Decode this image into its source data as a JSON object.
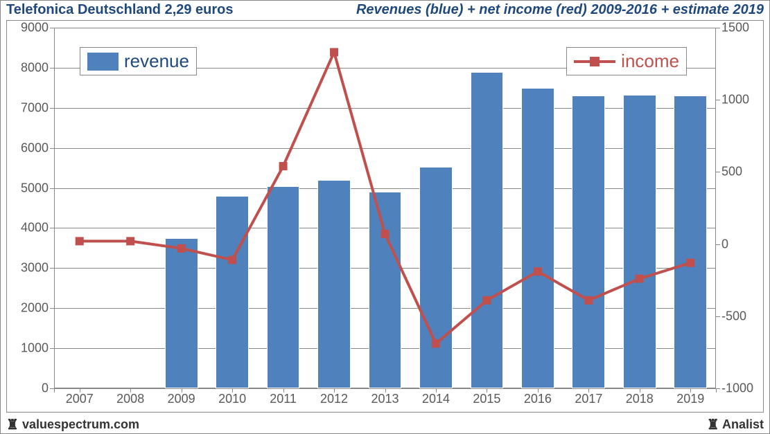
{
  "header": {
    "left": "Telefonica Deutschland 2,29 euros",
    "right": "Revenues (blue) + net income (red) 2009-2016 + estimate 2019"
  },
  "footer": {
    "left": "valuespectrum.com",
    "right": "Analist"
  },
  "legend": {
    "revenue": "revenue",
    "income": "income"
  },
  "chart": {
    "type": "bar+line",
    "categories": [
      "2007",
      "2008",
      "2009",
      "2010",
      "2011",
      "2012",
      "2013",
      "2014",
      "2015",
      "2016",
      "2017",
      "2018",
      "2019"
    ],
    "bars": {
      "values": [
        0,
        0,
        3750,
        4800,
        5050,
        5200,
        4900,
        5520,
        7890,
        7500,
        7300,
        7320,
        7300
      ],
      "color": "#4f81bd",
      "border_color": "#ffffff",
      "bar_width_frac": 0.65
    },
    "line": {
      "values": [
        20,
        20,
        -30,
        -110,
        540,
        1330,
        70,
        -690,
        -390,
        -190,
        -390,
        -240,
        -130
      ],
      "color": "#c0504d",
      "line_width": 4,
      "marker": "square",
      "marker_size": 12
    },
    "y_left": {
      "min": 0,
      "max": 9000,
      "step": 1000
    },
    "y_right": {
      "min": -1000,
      "max": 1500,
      "step": 500
    },
    "grid_color": "#888888",
    "background_color": "#ffffff",
    "label_fontsize": 18,
    "title_fontsize": 20,
    "legend_fontsize": 26
  }
}
